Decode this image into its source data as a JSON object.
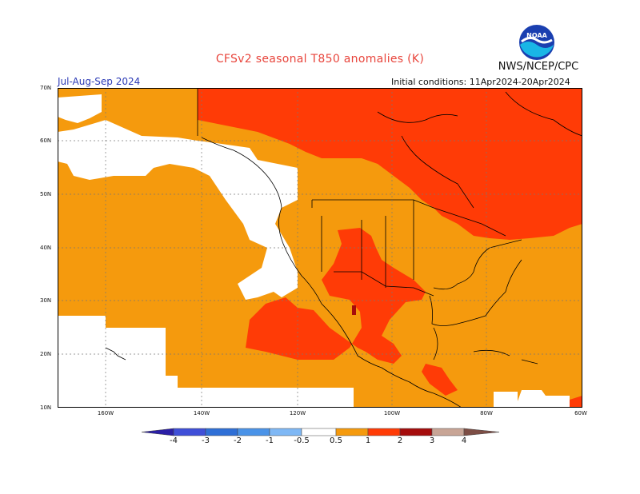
{
  "header": {
    "title": "CFSv2 seasonal T850 anomalies (K)",
    "org": "NWS/NCEP/CPC",
    "logo_text": "NOAA",
    "period": "Jul-Aug-Sep 2024",
    "initial_conditions": "Initial conditions: 11Apr2024-20Apr2024"
  },
  "axes": {
    "lat_labels": [
      "70N",
      "60N",
      "50N",
      "40N",
      "30N",
      "20N",
      "10N"
    ],
    "lon_labels": [
      "160W",
      "140W",
      "120W",
      "100W",
      "80W",
      "60W"
    ]
  },
  "colorbar": {
    "labels": [
      "-4",
      "-3",
      "-2",
      "-1",
      "-0.5",
      "0.5",
      "1",
      "2",
      "3",
      "4"
    ],
    "colors": [
      "#2b1fa6",
      "#3f4fd8",
      "#2f6fd6",
      "#4a93e8",
      "#7fb8f5",
      "#ffffff",
      "#f59a0d",
      "#ff3b06",
      "#a50c0c",
      "#c8a596",
      "#7d4e45"
    ]
  },
  "legend_colors": {
    "ocean_base": "#ffffff",
    "anom_0_5_to_1": "#f59a0d",
    "anom_1_to_2": "#ff3b06",
    "anom_2_to_3": "#a50c0c",
    "outline": "#000000",
    "grid": "#777777"
  }
}
